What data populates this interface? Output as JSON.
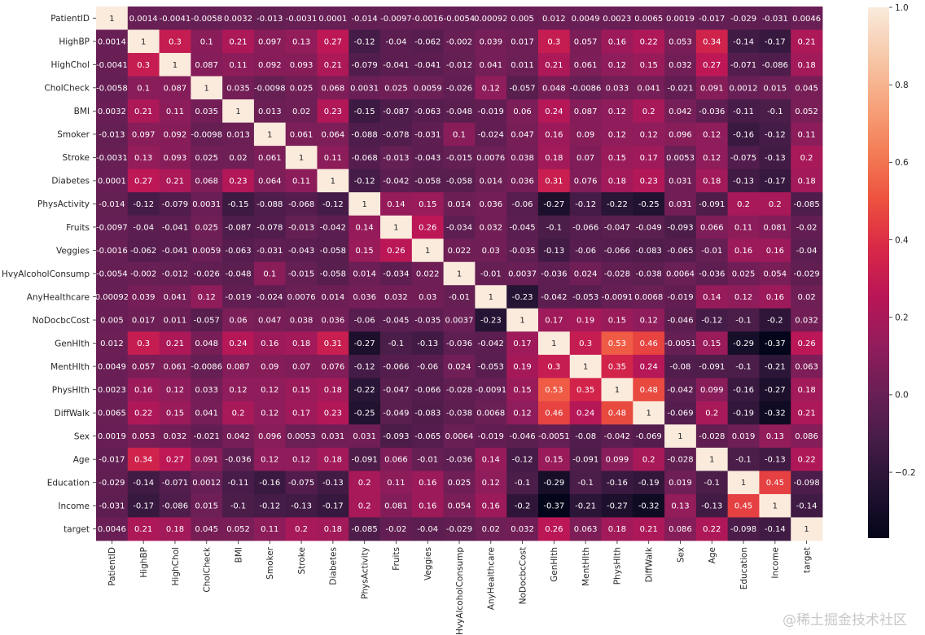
{
  "chart_data": {
    "type": "heatmap",
    "title": "",
    "labels": [
      "PatientID",
      "HighBP",
      "HighChol",
      "CholCheck",
      "BMI",
      "Smoker",
      "Stroke",
      "Diabetes",
      "PhysActivity",
      "Fruits",
      "Veggies",
      "HvyAlcoholConsump",
      "AnyHealthcare",
      "NoDocbcCost",
      "GenHlth",
      "MentHlth",
      "PhysHlth",
      "DiffWalk",
      "Sex",
      "Age",
      "Education",
      "Income",
      "target"
    ],
    "values": [
      [
        "1",
        "0.0014",
        "-0.0041",
        "-0.0058",
        "0.0032",
        "-0.013",
        "-0.0031",
        "0.0001",
        "-0.014",
        "-0.0097",
        "-0.0016",
        "-0.0054",
        "0.00092",
        "0.005",
        "0.012",
        "0.0049",
        "0.0023",
        "0.0065",
        "0.0019",
        "-0.017",
        "-0.029",
        "-0.031",
        "0.0046"
      ],
      [
        "0.0014",
        "1",
        "0.3",
        "0.1",
        "0.21",
        "0.097",
        "0.13",
        "0.27",
        "-0.12",
        "-0.04",
        "-0.062",
        "-0.002",
        "0.039",
        "0.017",
        "0.3",
        "0.057",
        "0.16",
        "0.22",
        "0.053",
        "0.34",
        "-0.14",
        "-0.17",
        "0.21"
      ],
      [
        "-0.0041",
        "0.3",
        "1",
        "0.087",
        "0.11",
        "0.092",
        "0.093",
        "0.21",
        "-0.079",
        "-0.041",
        "-0.041",
        "-0.012",
        "0.041",
        "0.011",
        "0.21",
        "0.061",
        "0.12",
        "0.15",
        "0.032",
        "0.27",
        "-0.071",
        "-0.086",
        "0.18"
      ],
      [
        "-0.0058",
        "0.1",
        "0.087",
        "1",
        "0.035",
        "-0.0098",
        "0.025",
        "0.068",
        "0.0031",
        "0.025",
        "0.0059",
        "-0.026",
        "0.12",
        "-0.057",
        "0.048",
        "-0.0086",
        "0.033",
        "0.041",
        "-0.021",
        "0.091",
        "0.0012",
        "0.015",
        "0.045"
      ],
      [
        "0.0032",
        "0.21",
        "0.11",
        "0.035",
        "1",
        "0.013",
        "0.02",
        "0.23",
        "-0.15",
        "-0.087",
        "-0.063",
        "-0.048",
        "-0.019",
        "0.06",
        "0.24",
        "0.087",
        "0.12",
        "0.2",
        "0.042",
        "-0.036",
        "-0.11",
        "-0.1",
        "0.052"
      ],
      [
        "-0.013",
        "0.097",
        "0.092",
        "-0.0098",
        "0.013",
        "1",
        "0.061",
        "0.064",
        "-0.088",
        "-0.078",
        "-0.031",
        "0.1",
        "-0.024",
        "0.047",
        "0.16",
        "0.09",
        "0.12",
        "0.12",
        "0.096",
        "0.12",
        "-0.16",
        "-0.12",
        "0.11"
      ],
      [
        "-0.0031",
        "0.13",
        "0.093",
        "0.025",
        "0.02",
        "0.061",
        "1",
        "0.11",
        "-0.068",
        "-0.013",
        "-0.043",
        "-0.015",
        "0.0076",
        "0.038",
        "0.18",
        "0.07",
        "0.15",
        "0.17",
        "0.0053",
        "0.12",
        "-0.075",
        "-0.13",
        "0.2"
      ],
      [
        "0.0001",
        "0.27",
        "0.21",
        "0.068",
        "0.23",
        "0.064",
        "0.11",
        "1",
        "-0.12",
        "-0.042",
        "-0.058",
        "-0.058",
        "0.014",
        "0.036",
        "0.31",
        "0.076",
        "0.18",
        "0.23",
        "0.031",
        "0.18",
        "-0.13",
        "-0.17",
        "0.18"
      ],
      [
        "-0.014",
        "-0.12",
        "-0.079",
        "0.0031",
        "-0.15",
        "-0.088",
        "-0.068",
        "-0.12",
        "1",
        "0.14",
        "0.15",
        "0.014",
        "0.036",
        "-0.06",
        "-0.27",
        "-0.12",
        "-0.22",
        "-0.25",
        "0.031",
        "-0.091",
        "0.2",
        "0.2",
        "-0.085"
      ],
      [
        "-0.0097",
        "-0.04",
        "-0.041",
        "0.025",
        "-0.087",
        "-0.078",
        "-0.013",
        "-0.042",
        "0.14",
        "1",
        "0.26",
        "-0.034",
        "0.032",
        "-0.045",
        "-0.1",
        "-0.066",
        "-0.047",
        "-0.049",
        "-0.093",
        "0.066",
        "0.11",
        "0.081",
        "-0.02"
      ],
      [
        "-0.0016",
        "-0.062",
        "-0.041",
        "0.0059",
        "-0.063",
        "-0.031",
        "-0.043",
        "-0.058",
        "0.15",
        "0.26",
        "1",
        "0.022",
        "0.03",
        "-0.035",
        "-0.13",
        "-0.06",
        "-0.066",
        "-0.083",
        "-0.065",
        "-0.01",
        "0.16",
        "0.16",
        "-0.04"
      ],
      [
        "-0.0054",
        "-0.002",
        "-0.012",
        "-0.026",
        "-0.048",
        "0.1",
        "-0.015",
        "-0.058",
        "0.014",
        "-0.034",
        "0.022",
        "1",
        "-0.01",
        "0.0037",
        "-0.036",
        "0.024",
        "-0.028",
        "-0.038",
        "0.0064",
        "-0.036",
        "0.025",
        "0.054",
        "-0.029"
      ],
      [
        "0.00092",
        "0.039",
        "0.041",
        "0.12",
        "-0.019",
        "-0.024",
        "0.0076",
        "0.014",
        "0.036",
        "0.032",
        "0.03",
        "-0.01",
        "1",
        "-0.23",
        "-0.042",
        "-0.053",
        "-0.0091",
        "0.0068",
        "-0.019",
        "0.14",
        "0.12",
        "0.16",
        "0.02"
      ],
      [
        "0.005",
        "0.017",
        "0.011",
        "-0.057",
        "0.06",
        "0.047",
        "0.038",
        "0.036",
        "-0.06",
        "-0.045",
        "-0.035",
        "0.0037",
        "-0.23",
        "1",
        "0.17",
        "0.19",
        "0.15",
        "0.12",
        "-0.046",
        "-0.12",
        "-0.1",
        "-0.2",
        "0.032"
      ],
      [
        "0.012",
        "0.3",
        "0.21",
        "0.048",
        "0.24",
        "0.16",
        "0.18",
        "0.31",
        "-0.27",
        "-0.1",
        "-0.13",
        "-0.036",
        "-0.042",
        "0.17",
        "1",
        "0.3",
        "0.53",
        "0.46",
        "-0.0051",
        "0.15",
        "-0.29",
        "-0.37",
        "0.26"
      ],
      [
        "0.0049",
        "0.057",
        "0.061",
        "-0.0086",
        "0.087",
        "0.09",
        "0.07",
        "0.076",
        "-0.12",
        "-0.066",
        "-0.06",
        "0.024",
        "-0.053",
        "0.19",
        "0.3",
        "1",
        "0.35",
        "0.24",
        "-0.08",
        "-0.091",
        "-0.1",
        "-0.21",
        "0.063"
      ],
      [
        "0.0023",
        "0.16",
        "0.12",
        "0.033",
        "0.12",
        "0.12",
        "0.15",
        "0.18",
        "-0.22",
        "-0.047",
        "-0.066",
        "-0.028",
        "-0.0091",
        "0.15",
        "0.53",
        "0.35",
        "1",
        "0.48",
        "-0.042",
        "0.099",
        "-0.16",
        "-0.27",
        "0.18"
      ],
      [
        "0.0065",
        "0.22",
        "0.15",
        "0.041",
        "0.2",
        "0.12",
        "0.17",
        "0.23",
        "-0.25",
        "-0.049",
        "-0.083",
        "-0.038",
        "0.0068",
        "0.12",
        "0.46",
        "0.24",
        "0.48",
        "1",
        "-0.069",
        "0.2",
        "-0.19",
        "-0.32",
        "0.21"
      ],
      [
        "0.0019",
        "0.053",
        "0.032",
        "-0.021",
        "0.042",
        "0.096",
        "0.0053",
        "0.031",
        "0.031",
        "-0.093",
        "-0.065",
        "0.0064",
        "-0.019",
        "-0.046",
        "-0.0051",
        "-0.08",
        "-0.042",
        "-0.069",
        "1",
        "-0.028",
        "0.019",
        "0.13",
        "0.086"
      ],
      [
        "-0.017",
        "0.34",
        "0.27",
        "0.091",
        "-0.036",
        "0.12",
        "0.12",
        "0.18",
        "-0.091",
        "0.066",
        "-0.01",
        "-0.036",
        "0.14",
        "-0.12",
        "0.15",
        "-0.091",
        "0.099",
        "0.2",
        "-0.028",
        "1",
        "-0.1",
        "-0.13",
        "0.22"
      ],
      [
        "-0.029",
        "-0.14",
        "-0.071",
        "0.0012",
        "-0.11",
        "-0.16",
        "-0.075",
        "-0.13",
        "0.2",
        "0.11",
        "0.16",
        "0.025",
        "0.12",
        "-0.1",
        "-0.29",
        "-0.1",
        "-0.16",
        "-0.19",
        "0.019",
        "-0.1",
        "1",
        "0.45",
        "-0.098"
      ],
      [
        "-0.031",
        "-0.17",
        "-0.086",
        "0.015",
        "-0.1",
        "-0.12",
        "-0.13",
        "-0.17",
        "0.2",
        "0.081",
        "0.16",
        "0.054",
        "0.16",
        "-0.2",
        "-0.37",
        "-0.21",
        "-0.27",
        "-0.32",
        "0.13",
        "-0.13",
        "0.45",
        "1",
        "-0.14"
      ],
      [
        "0.0046",
        "0.21",
        "0.18",
        "0.045",
        "0.052",
        "0.11",
        "0.2",
        "0.18",
        "-0.085",
        "-0.02",
        "-0.04",
        "-0.029",
        "0.02",
        "0.032",
        "0.26",
        "0.063",
        "0.18",
        "0.21",
        "0.086",
        "0.22",
        "-0.098",
        "-0.14",
        "1"
      ]
    ],
    "colorbar": {
      "vmin": -0.37,
      "vmax": 1,
      "ticks": [
        -0.2,
        0.0,
        0.2,
        0.4,
        0.6,
        0.8,
        1.0
      ],
      "tick_labels": [
        "−0.2",
        "0.0",
        "0.2",
        "0.4",
        "0.6",
        "0.8",
        "1.0"
      ]
    },
    "colormap": "rocket",
    "colormap_stops": [
      "#03051a",
      "#221331",
      "#451c47",
      "#691f55",
      "#921c5b",
      "#b91657",
      "#d92847",
      "#ed513e",
      "#f47d57",
      "#f6a47c",
      "#f7c9aa",
      "#faebdd"
    ]
  },
  "watermark": "@稀土掘金技术社区"
}
